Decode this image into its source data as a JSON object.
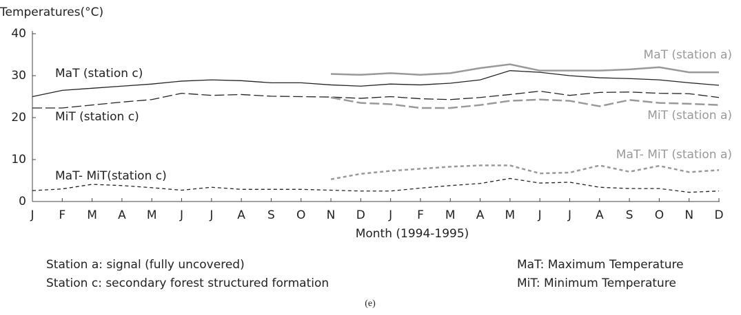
{
  "chart_data": {
    "type": "line",
    "title": "Temperatures(°C)",
    "x_label": "Month (1994-1995)",
    "categories": [
      "J",
      "F",
      "M",
      "A",
      "M",
      "J",
      "J",
      "A",
      "S",
      "O",
      "N",
      "D",
      "J",
      "F",
      "M",
      "A",
      "M",
      "J",
      "J",
      "A",
      "S",
      "O",
      "N",
      "D"
    ],
    "ylim": [
      0,
      40
    ],
    "yticks": [
      0,
      10,
      20,
      30,
      40
    ],
    "series": [
      {
        "name": "MaT (station c)",
        "color": "#222222",
        "line_style": "solid",
        "values": [
          25,
          26.5,
          27,
          27.5,
          28,
          28.7,
          29,
          28.8,
          28.3,
          28.3,
          27.8,
          27.5,
          28,
          27.8,
          28.2,
          29,
          31.2,
          30.8,
          30,
          29.5,
          29.3,
          29,
          28.3,
          27.7
        ]
      },
      {
        "name": "MiT (station c)",
        "color": "#222222",
        "line_style": "long-dash",
        "values": [
          22.3,
          22.3,
          23,
          23.7,
          24.3,
          25.8,
          25.3,
          25.5,
          25.1,
          25,
          24.9,
          24.6,
          25,
          24.5,
          24.3,
          24.8,
          25.5,
          26.3,
          25.3,
          26,
          26.1,
          25.8,
          25.7,
          24.8
        ]
      },
      {
        "name": "MaT- MiT(station c)",
        "color": "#222222",
        "line_style": "short-dash",
        "values": [
          2.6,
          3,
          4.1,
          3.8,
          3.3,
          2.7,
          3.4,
          2.9,
          2.9,
          2.9,
          2.7,
          2.5,
          2.5,
          3.2,
          3.8,
          4.3,
          5.5,
          4.4,
          4.6,
          3.4,
          3.1,
          3.1,
          2.2,
          2.5
        ]
      },
      {
        "name": "MaT (station a)",
        "color": "#999999",
        "line_style": "solid",
        "values": [
          null,
          null,
          null,
          null,
          null,
          null,
          null,
          null,
          null,
          null,
          30.4,
          30.2,
          30.6,
          30.2,
          30.6,
          31.8,
          32.7,
          31.2,
          31.2,
          31.2,
          31.5,
          32,
          30.8,
          30.8
        ]
      },
      {
        "name": "MiT (station a)",
        "color": "#999999",
        "line_style": "long-dash",
        "values": [
          null,
          null,
          null,
          null,
          null,
          null,
          null,
          null,
          null,
          null,
          24.8,
          23.5,
          23.2,
          22.3,
          22.3,
          23,
          24,
          24.3,
          24,
          22.7,
          24.2,
          23.5,
          23.3,
          23
        ]
      },
      {
        "name": "MaT- MiT (station a)",
        "color": "#999999",
        "line_style": "short-dash",
        "values": [
          null,
          null,
          null,
          null,
          null,
          null,
          null,
          null,
          null,
          null,
          5.3,
          6.6,
          7.3,
          7.8,
          8.3,
          8.6,
          8.6,
          6.7,
          6.9,
          8.6,
          7.1,
          8.5,
          7,
          7.5
        ]
      }
    ],
    "notes": [
      "Station a: signal (fully uncovered)",
      "Station c: secondary forest structured formation",
      "MaT: Maximum Temperature",
      "MiT: Minimum Temperature"
    ],
    "caption": "(e)"
  }
}
